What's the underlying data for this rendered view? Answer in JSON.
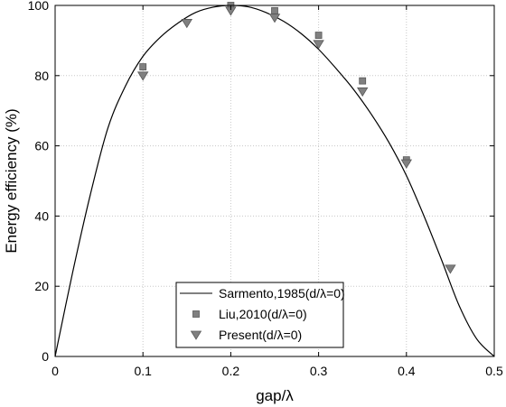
{
  "chart_data": {
    "type": "line",
    "title": "",
    "xlabel": "gap/λ",
    "ylabel": "Energy efficiency (%)",
    "xlim": [
      0,
      0.5
    ],
    "ylim": [
      0,
      100
    ],
    "xticks": [
      0,
      0.1,
      0.2,
      0.3,
      0.4,
      0.5
    ],
    "xtick_labels": [
      "0",
      "0.1",
      "0.2",
      "0.3",
      "0.4",
      "0.5"
    ],
    "yticks": [
      0,
      20,
      40,
      60,
      80,
      100
    ],
    "ytick_labels": [
      "0",
      "20",
      "40",
      "60",
      "80",
      "100"
    ],
    "grid": true,
    "legend_position": "bottom-center",
    "series": [
      {
        "name": "Sarmento,1985(d/λ=0)",
        "style": "line",
        "color": "#000000",
        "x": [
          0,
          0.02,
          0.04,
          0.06,
          0.08,
          0.1,
          0.12,
          0.14,
          0.16,
          0.18,
          0.2,
          0.22,
          0.24,
          0.26,
          0.28,
          0.3,
          0.32,
          0.34,
          0.36,
          0.38,
          0.4,
          0.42,
          0.44,
          0.46,
          0.48,
          0.5
        ],
        "y": [
          0,
          24,
          46,
          65,
          77,
          85.5,
          91,
          95,
          98,
          99.5,
          100,
          99.6,
          98,
          95.5,
          92,
          87.5,
          82,
          76,
          69,
          61,
          51.5,
          40,
          27.5,
          14.5,
          5,
          0
        ]
      },
      {
        "name": "Liu,2010(d/λ=0)",
        "style": "square",
        "color": "#808080",
        "x": [
          0.1,
          0.2,
          0.25,
          0.3,
          0.35,
          0.4
        ],
        "y": [
          82.5,
          100,
          98.5,
          91.5,
          78.5,
          56
        ]
      },
      {
        "name": "Present(d/λ=0)",
        "style": "triangle-down",
        "color": "#808080",
        "x": [
          0.1,
          0.15,
          0.2,
          0.25,
          0.3,
          0.35,
          0.4,
          0.45
        ],
        "y": [
          80,
          95,
          98.5,
          96.5,
          89,
          75.5,
          55,
          25
        ]
      }
    ]
  }
}
